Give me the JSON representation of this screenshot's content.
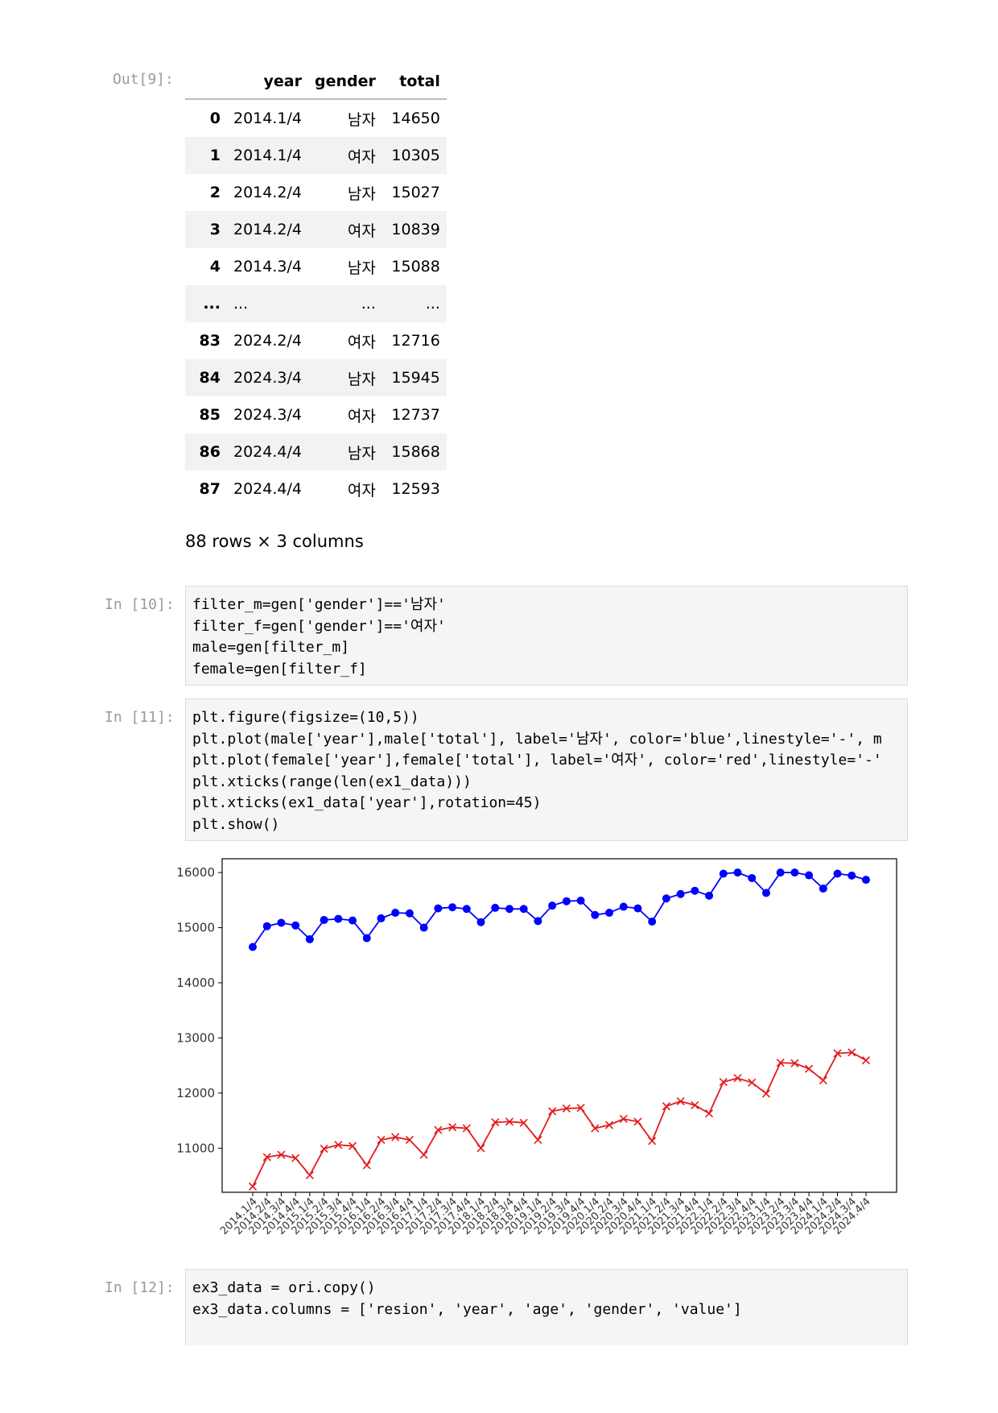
{
  "out9": {
    "prompt": "Out[9]:",
    "columns": [
      "year",
      "gender",
      "total"
    ],
    "rows": [
      {
        "idx": "0",
        "year": "2014.1/4",
        "gender": "남자",
        "total": "14650"
      },
      {
        "idx": "1",
        "year": "2014.1/4",
        "gender": "여자",
        "total": "10305"
      },
      {
        "idx": "2",
        "year": "2014.2/4",
        "gender": "남자",
        "total": "15027"
      },
      {
        "idx": "3",
        "year": "2014.2/4",
        "gender": "여자",
        "total": "10839"
      },
      {
        "idx": "4",
        "year": "2014.3/4",
        "gender": "남자",
        "total": "15088"
      },
      {
        "idx": "...",
        "year": "...",
        "gender": "...",
        "total": "..."
      },
      {
        "idx": "83",
        "year": "2024.2/4",
        "gender": "여자",
        "total": "12716"
      },
      {
        "idx": "84",
        "year": "2024.3/4",
        "gender": "남자",
        "total": "15945"
      },
      {
        "idx": "85",
        "year": "2024.3/4",
        "gender": "여자",
        "total": "12737"
      },
      {
        "idx": "86",
        "year": "2024.4/4",
        "gender": "남자",
        "total": "15868"
      },
      {
        "idx": "87",
        "year": "2024.4/4",
        "gender": "여자",
        "total": "12593"
      }
    ],
    "shape": "88 rows × 3 columns"
  },
  "in10": {
    "prompt": "In [10]:",
    "code": [
      "filter_m=gen['gender']=='남자'",
      "filter_f=gen['gender']=='여자'",
      "male=gen[filter_m]",
      "female=gen[filter_f]"
    ]
  },
  "in11": {
    "prompt": "In [11]:",
    "code": [
      "plt.figure(figsize=(10,5))",
      "plt.plot(male['year'],male['total'], label='남자', color='blue',linestyle='-', m",
      "plt.plot(female['year'],female['total'], label='여자', color='red',linestyle='-'",
      "plt.xticks(range(len(ex1_data)))",
      "plt.xticks(ex1_data['year'],rotation=45)",
      "plt.show()"
    ]
  },
  "in12": {
    "prompt": "In [12]:",
    "code": [
      "ex3_data = ori.copy()",
      "ex3_data.columns = ['resion', 'year', 'age', 'gender', 'value']"
    ]
  },
  "chart_data": {
    "type": "line",
    "title": "",
    "xlabel": "",
    "ylabel": "",
    "ylim": [
      10200,
      16250
    ],
    "yticks": [
      11000,
      12000,
      13000,
      14000,
      15000,
      16000
    ],
    "grid": false,
    "x": [
      "2014.1/4",
      "2014.2/4",
      "2014.3/4",
      "2014.4/4",
      "2015.1/4",
      "2015.2/4",
      "2015.3/4",
      "2015.4/4",
      "2016.1/4",
      "2016.2/4",
      "2016.3/4",
      "2016.4/4",
      "2017.1/4",
      "2017.2/4",
      "2017.3/4",
      "2017.4/4",
      "2018.1/4",
      "2018.2/4",
      "2018.3/4",
      "2018.4/4",
      "2019.1/4",
      "2019.2/4",
      "2019.3/4",
      "2019.4/4",
      "2020.1/4",
      "2020.2/4",
      "2020.3/4",
      "2020.4/4",
      "2021.1/4",
      "2021.2/4",
      "2021.3/4",
      "2021.4/4",
      "2022.1/4",
      "2022.2/4",
      "2022.3/4",
      "2022.4/4",
      "2023.1/4",
      "2023.2/4",
      "2023.3/4",
      "2023.4/4",
      "2024.1/4",
      "2024.2/4",
      "2024.3/4",
      "2024.4/4"
    ],
    "series": [
      {
        "color": "#0000ff",
        "marker": "o",
        "values": [
          14650,
          15027,
          15088,
          15040,
          14790,
          15140,
          15160,
          15130,
          14810,
          15170,
          15270,
          15260,
          15000,
          15350,
          15370,
          15340,
          15100,
          15360,
          15340,
          15340,
          15120,
          15400,
          15480,
          15490,
          15230,
          15270,
          15380,
          15350,
          15110,
          15530,
          15610,
          15670,
          15580,
          15980,
          16000,
          15900,
          15630,
          16000,
          16000,
          15950,
          15710,
          15980,
          15945,
          15868
        ]
      },
      {
        "color": "#e41a1c",
        "marker": "x",
        "values": [
          10305,
          10839,
          10880,
          10820,
          10510,
          10990,
          11060,
          11040,
          10690,
          11150,
          11200,
          11150,
          10880,
          11330,
          11380,
          11360,
          11000,
          11470,
          11480,
          11460,
          11150,
          11670,
          11720,
          11730,
          11360,
          11420,
          11530,
          11480,
          11130,
          11760,
          11850,
          11780,
          11630,
          12200,
          12270,
          12190,
          11990,
          12550,
          12540,
          12440,
          12230,
          12720,
          12737,
          12593
        ]
      }
    ]
  }
}
